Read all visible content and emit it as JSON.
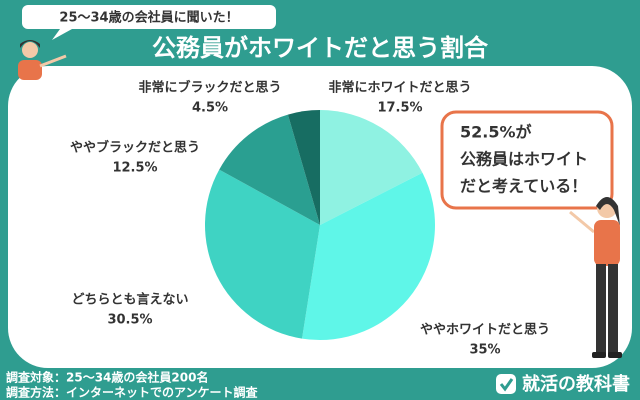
{
  "chart_data": {
    "type": "pie",
    "subtitle": "25〜34歳の会社員に聞いた！",
    "title": "公務員がホワイトだと思う割合",
    "categories": [
      "非常にホワイトだと思う",
      "ややホワイトだと思う",
      "どちらとも言えない",
      "ややブラックだと思う",
      "非常にブラックだと思う"
    ],
    "values": [
      17.5,
      35,
      30.5,
      12.5,
      4.5
    ],
    "value_labels": [
      "17.5%",
      "35%",
      "30.5%",
      "12.5%",
      "4.5%"
    ],
    "colors": [
      "#8ff2e2",
      "#5ff6e8",
      "#3fd3c3",
      "#2a9f91",
      "#176d62"
    ],
    "annotation": [
      "52.5%が",
      "公務員はホワイト",
      "だと考えている！"
    ]
  },
  "notes": [
    "調査対象：25〜34歳の会社員200名",
    "調査方法：インターネットでのアンケート調査"
  ],
  "logo": "就活の教科書"
}
